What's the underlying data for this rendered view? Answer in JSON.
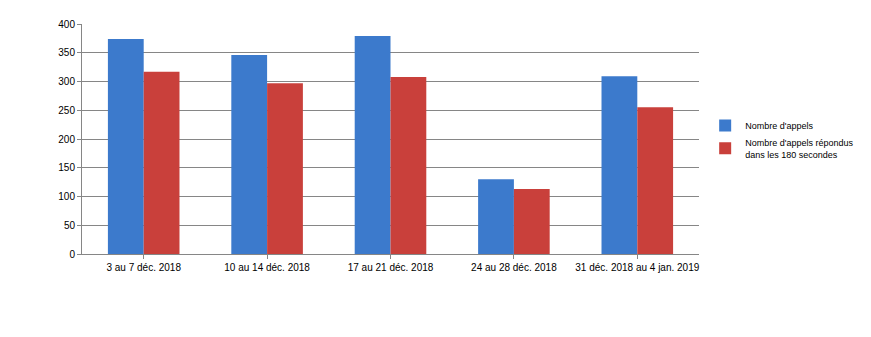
{
  "chart_data": {
    "type": "bar",
    "categories": [
      "3 au 7 déc. 2018",
      "10 au 14 déc. 2018",
      "17 au 21 déc. 2018",
      "24 au 28 déc. 2018",
      "31 déc. 2018 au 4 jan. 2019"
    ],
    "series": [
      {
        "name": "Nombre d'appels",
        "color": "#3c7acc",
        "values": [
          374,
          346,
          379,
          130,
          309
        ]
      },
      {
        "name": "Nombre d'appels répondus dans les 180 secondes",
        "color": "#c9403b",
        "values": [
          317,
          297,
          308,
          113,
          255
        ]
      }
    ],
    "ylim": [
      0,
      400
    ],
    "yticks": [
      0,
      50,
      100,
      150,
      200,
      250,
      300,
      350,
      400
    ],
    "grid": true,
    "legend": "right"
  }
}
